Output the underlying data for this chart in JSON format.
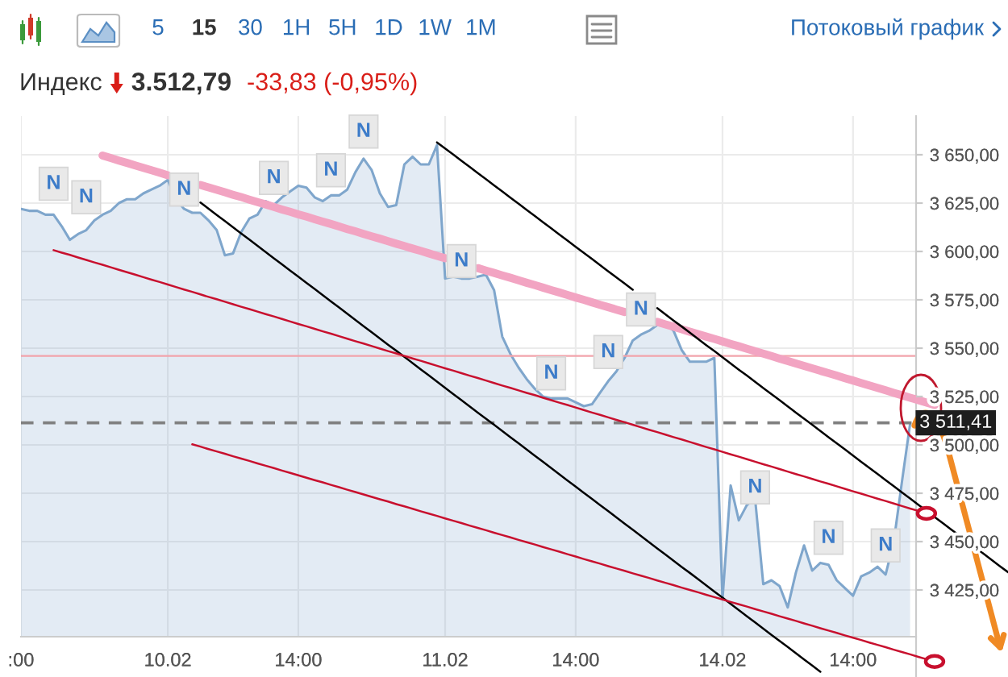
{
  "chart_data": {
    "type": "area",
    "title": "Индекс",
    "subtitle": "3.512,79",
    "annotations": [
      "-33,83 (-0,95%)",
      "5",
      "15",
      "30",
      "1H",
      "5H",
      "1D",
      "1W",
      "1M",
      "Потоковый график"
    ],
    "categories": [
      ":00",
      null,
      null,
      null,
      null,
      null,
      null,
      null,
      null,
      null,
      null,
      null,
      null,
      null,
      null,
      null,
      null,
      null,
      "10.02",
      null,
      null,
      null,
      null,
      null,
      null,
      null,
      null,
      null,
      null,
      null,
      null,
      null,
      null,
      null,
      "14:00",
      null,
      null,
      null,
      null,
      null,
      null,
      null,
      null,
      null,
      null,
      null,
      null,
      null,
      null,
      null,
      null,
      null,
      "11.02",
      null,
      null,
      null,
      null,
      null,
      null,
      null,
      null,
      null,
      null,
      null,
      null,
      null,
      null,
      null,
      "14:00",
      null,
      null,
      null,
      null,
      null,
      null,
      null,
      null,
      null,
      null,
      null,
      null,
      null,
      null,
      null,
      null,
      null,
      "14.02",
      null,
      null,
      null,
      null,
      null,
      null,
      null,
      null,
      null,
      null,
      null,
      null,
      null,
      null,
      null,
      "14:00",
      null,
      null,
      null,
      null,
      null,
      null,
      null,
      null,
      null,
      null,
      null,
      null,
      null,
      null,
      null,
      null,
      null,
      null,
      null
    ],
    "ylim": [
      3380,
      3670
    ],
    "yticks": [
      {
        "value": 3425,
        "label": "3 425,00"
      },
      {
        "value": 3450,
        "label": "3 450,00"
      },
      {
        "value": 3475,
        "label": "3 475,00"
      },
      {
        "value": 3500,
        "label": "3 500,00"
      },
      {
        "value": 3525,
        "label": "3 525,00"
      },
      {
        "value": 3550,
        "label": "3 550,00"
      },
      {
        "value": 3575,
        "label": "3 575,00"
      },
      {
        "value": 3600,
        "label": "3 600,00"
      },
      {
        "value": 3625,
        "label": "3 625,00"
      },
      {
        "value": 3650,
        "label": "3 650,00"
      }
    ],
    "grid": true,
    "series": [
      {
        "color": "#7fa6cc",
        "values": [
          3622,
          3621,
          3621,
          3619,
          3619,
          3613,
          3606,
          3609,
          3611,
          3616,
          3619,
          3621,
          3625,
          3627,
          3627,
          3630,
          3632,
          3634,
          3637,
          3627,
          3622,
          3620,
          3620,
          3616,
          3611,
          3598,
          3599,
          3610,
          3617,
          3619,
          3626,
          3624,
          3628,
          3631,
          3634,
          3633,
          3628,
          3626,
          3629,
          3629,
          3632,
          3641,
          3648,
          3642,
          3630,
          3623,
          3624,
          3645,
          3649,
          3645,
          3645,
          3655,
          3586,
          3587,
          3586,
          3586,
          3587,
          3588,
          3580,
          3556,
          3547,
          3540,
          3534,
          3529,
          3525,
          3524,
          3524,
          3524,
          3522,
          3520,
          3521,
          3527,
          3533,
          3538,
          3545,
          3554,
          3557,
          3559,
          3562,
          3563,
          3559,
          3549,
          3543,
          3543,
          3543,
          3545,
          3420,
          3479,
          3461,
          3469,
          3472,
          3428,
          3430,
          3427,
          3416,
          3434,
          3448,
          3435,
          3439,
          3438,
          3430,
          3426,
          3422,
          3432,
          3434,
          3437,
          3433,
          3450,
          3481,
          3511,
          null,
          null,
          null,
          null,
          null,
          null,
          null,
          null,
          null,
          null,
          null,
          null
        ]
      },
      {
        "type": "line",
        "color": "#f2a4c2",
        "values": [
          null,
          null,
          null,
          null,
          null,
          null,
          null,
          null,
          null,
          null,
          3649.6,
          3648.3,
          3647.0,
          3645.8,
          3644.5,
          3643.2,
          3642.0,
          3640.7,
          3639.4,
          null,
          null,
          null,
          3634.4,
          3633.1,
          3631.9,
          3630.6,
          3629.3,
          3628.1,
          3626.8,
          3625.5,
          3624.3,
          3623.0,
          3621.7,
          3620.5,
          3619.2,
          3618.0,
          3616.7,
          3615.4,
          3614.2,
          3612.9,
          3611.6,
          3610.4,
          3609.1,
          3607.8,
          3606.6,
          3605.3,
          3604.0,
          3602.8,
          3601.5,
          3600.3,
          3599.0,
          3597.7,
          3596.5,
          null,
          null,
          null,
          3591.4,
          3590.1,
          3588.9,
          3587.6,
          3586.4,
          3585.1,
          3583.8,
          3582.6,
          3581.3,
          3580.0,
          3578.8,
          3577.5,
          3576.2,
          3575.0,
          3573.7,
          3572.4,
          3571.2,
          3569.9,
          3568.7,
          null,
          null,
          null,
          3563.6,
          3562.3,
          3561.1,
          3559.8,
          3558.5,
          3557.3,
          3556.0,
          3554.8,
          3553.5,
          3552.2,
          3551.0,
          3549.7,
          3548.4,
          3547.2,
          3545.9,
          3544.6,
          3543.4,
          3542.1,
          3540.8,
          3539.6,
          3538.3,
          3537.1,
          3535.8,
          3534.5,
          3533.3,
          3532.0,
          3530.7,
          3529.5,
          3528.2,
          3526.9,
          3525.7,
          3524.4,
          3523.2,
          3521.9,
          3520.6,
          null,
          null,
          null,
          null,
          null,
          null,
          null,
          null,
          null
        ]
      },
      {
        "type": "line",
        "color": "#000000",
        "values": [
          null,
          null,
          null,
          null,
          null,
          null,
          null,
          null,
          null,
          null,
          null,
          null,
          null,
          null,
          null,
          null,
          null,
          null,
          null,
          null,
          null,
          null,
          3625.3,
          3622.1,
          3618.9,
          3615.7,
          3612.5,
          3609.3,
          3606.1,
          3602.9,
          3599.7,
          3596.5,
          3593.3,
          3590.1,
          3587.0,
          3583.8,
          3580.6,
          3577.4,
          3574.2,
          3571.0,
          3567.8,
          3564.6,
          3561.4,
          3558.2,
          3555.0,
          3551.8,
          3548.7,
          3545.5,
          3542.3,
          3539.1,
          3535.9,
          3532.7,
          3529.5,
          3526.3,
          3523.1,
          3519.9,
          3516.7,
          3513.5,
          3510.4,
          3507.2,
          3504.0,
          3500.8,
          3497.6,
          3494.4,
          3491.2,
          3488.0,
          3484.8,
          3481.6,
          3478.4,
          3475.2,
          3472.1,
          3468.9,
          3465.7,
          3462.5,
          3459.3,
          3456.1,
          3452.9,
          3449.7,
          3446.5,
          3443.3,
          3440.1,
          3436.9,
          3433.8,
          3430.6,
          3427.4,
          3424.2,
          3421.0,
          3417.8,
          3414.6,
          3411.4,
          3408.2,
          3405.0,
          3401.8,
          3398.6,
          3395.5,
          3392.3,
          3389.1,
          3385.9,
          3382.7,
          null,
          null,
          null,
          null,
          null,
          null,
          null,
          null,
          null,
          null,
          null,
          null,
          null,
          null,
          null,
          null,
          null,
          null,
          null,
          null,
          null,
          null,
          null
        ]
      },
      {
        "type": "line",
        "color": "#000000",
        "values": [
          null,
          null,
          null,
          null,
          null,
          null,
          null,
          null,
          null,
          null,
          null,
          null,
          null,
          null,
          null,
          null,
          null,
          null,
          null,
          null,
          null,
          null,
          null,
          null,
          null,
          null,
          null,
          null,
          null,
          null,
          null,
          null,
          null,
          null,
          null,
          null,
          null,
          null,
          null,
          null,
          null,
          null,
          null,
          null,
          null,
          null,
          null,
          null,
          null,
          null,
          null,
          3656.4,
          3653.2,
          3650.1,
          3646.9,
          3643.7,
          3640.5,
          3637.4,
          3634.2,
          3631.0,
          3627.8,
          3624.7,
          3621.5,
          3618.3,
          3615.1,
          3612.0,
          3608.8,
          3605.6,
          3602.4,
          3599.3,
          3596.1,
          3592.9,
          3589.7,
          3586.6,
          3583.4,
          3580.2,
          null,
          null,
          3570.7,
          3567.5,
          3564.3,
          3561.2,
          3558.0,
          3554.8,
          3551.6,
          3548.5,
          3545.3,
          3542.1,
          3538.9,
          3535.8,
          3532.6,
          3529.4,
          3526.2,
          3523.1,
          3519.9,
          3516.7,
          3513.5,
          3510.4,
          3507.2,
          3504.0,
          3500.8,
          3497.7,
          3494.5,
          3491.3,
          3488.1,
          3485.0,
          3481.8,
          3478.6,
          3475.4,
          3472.3,
          3469.1,
          3465.9,
          3462.7,
          3459.6,
          3456.4,
          3453.2,
          3450.0,
          3446.9,
          3443.7,
          3440.5,
          3437.3,
          3434.2
        ]
      },
      {
        "type": "line",
        "color": "#c8102e",
        "values": [
          null,
          null,
          null,
          null,
          3600.7,
          3599.4,
          3598.2,
          3596.9,
          3595.6,
          3594.3,
          3593.1,
          3591.8,
          3590.5,
          3589.3,
          3588.0,
          3586.7,
          3585.4,
          3584.2,
          3582.9,
          3581.6,
          3580.3,
          3579.1,
          3577.8,
          3576.5,
          3575.3,
          3574.0,
          3572.7,
          3571.4,
          3570.2,
          3568.9,
          3567.6,
          3566.4,
          3565.1,
          3563.8,
          3562.5,
          3561.3,
          3560.0,
          3558.7,
          3557.5,
          3556.2,
          3554.9,
          3553.6,
          3552.4,
          3551.1,
          3549.8,
          3548.5,
          3547.3,
          3546.0,
          3544.7,
          3543.5,
          3542.2,
          3540.9,
          3539.6,
          3538.4,
          3537.1,
          3535.8,
          3534.6,
          3533.3,
          3532.0,
          3530.7,
          3529.5,
          3528.2,
          3526.9,
          3525.7,
          3524.4,
          3523.1,
          3521.8,
          3520.6,
          3519.3,
          3518.0,
          3516.7,
          3515.5,
          3514.2,
          3512.9,
          3511.7,
          3510.4,
          3509.1,
          3507.8,
          3506.6,
          3505.3,
          3504.0,
          3502.8,
          3501.5,
          3500.2,
          3498.9,
          3497.7,
          3496.4,
          3495.1,
          3493.9,
          3492.6,
          3491.3,
          3490.0,
          3488.8,
          3487.5,
          3486.2,
          3484.9,
          3483.7,
          3482.4,
          3481.1,
          3479.9,
          3478.6,
          3477.3,
          3476.0,
          3474.8,
          3473.5,
          3472.2,
          3471.0,
          3469.7,
          3468.4,
          3467.1,
          3465.9,
          3464.6,
          null,
          null,
          null,
          null,
          null,
          null,
          null,
          null,
          null,
          null
        ]
      },
      {
        "type": "line",
        "color": "#c8102e",
        "values": [
          null,
          null,
          null,
          null,
          null,
          null,
          null,
          null,
          null,
          null,
          null,
          null,
          null,
          null,
          null,
          null,
          null,
          null,
          null,
          null,
          null,
          3500.3,
          3499.1,
          3497.8,
          3496.6,
          3495.4,
          3494.1,
          3492.9,
          3491.7,
          3490.4,
          3489.2,
          3488.0,
          3486.7,
          3485.5,
          3484.3,
          3483.0,
          3481.8,
          3480.6,
          3479.3,
          3478.1,
          3476.8,
          3475.6,
          3474.4,
          3473.1,
          3471.9,
          3470.7,
          3469.4,
          3468.2,
          3467.0,
          3465.7,
          3464.5,
          3463.3,
          3462.0,
          3460.8,
          3459.6,
          3458.3,
          3457.1,
          3455.9,
          3454.6,
          3453.4,
          3452.2,
          3450.9,
          3449.7,
          3448.5,
          3447.2,
          3446.0,
          3444.8,
          3443.5,
          3442.3,
          3441.0,
          3439.8,
          3438.6,
          3437.3,
          3436.1,
          3434.9,
          3433.6,
          3432.4,
          3431.2,
          3429.9,
          3428.7,
          3427.5,
          3426.2,
          3425.0,
          3423.8,
          3422.5,
          3421.3,
          3420.1,
          3418.8,
          3417.6,
          3416.4,
          3415.1,
          3413.9,
          3412.7,
          3411.4,
          3410.2,
          3409.0,
          3407.7,
          3406.5,
          3405.2,
          3404.0,
          3402.8,
          3401.5,
          3400.3,
          3399.1,
          3397.8,
          3396.6,
          3395.4,
          3394.1,
          3392.9,
          3391.7,
          3390.4,
          3389.2,
          3388.0,
          null,
          null,
          null,
          null,
          null,
          null,
          null,
          null,
          null
        ]
      },
      {
        "type": "scatter",
        "name": "N",
        "color": "#e9e9e9",
        "values": [
          null,
          null,
          null,
          null,
          3635,
          null,
          null,
          null,
          3628,
          null,
          null,
          null,
          null,
          null,
          null,
          null,
          null,
          null,
          null,
          null,
          3632,
          null,
          null,
          null,
          null,
          null,
          null,
          null,
          null,
          null,
          null,
          3638,
          null,
          null,
          null,
          null,
          null,
          null,
          3642,
          null,
          null,
          null,
          3662,
          null,
          null,
          null,
          null,
          null,
          null,
          null,
          null,
          null,
          null,
          null,
          3595,
          null,
          null,
          null,
          null,
          null,
          null,
          null,
          null,
          null,
          null,
          3537,
          null,
          null,
          null,
          null,
          null,
          null,
          3548,
          null,
          null,
          null,
          3570,
          null,
          null,
          null,
          null,
          null,
          null,
          null,
          null,
          null,
          null,
          null,
          null,
          null,
          3478,
          null,
          null,
          null,
          null,
          null,
          null,
          null,
          null,
          3452,
          null,
          null,
          null,
          null,
          null,
          null,
          3448,
          null,
          null,
          null,
          null,
          null,
          null,
          null,
          null,
          null,
          null,
          null,
          null,
          null,
          null,
          null
        ]
      }
    ],
    "ref_lines": [
      {
        "axis": "y",
        "value": 3546,
        "color": "#f2a3ab"
      },
      {
        "axis": "y",
        "value": 3511.41,
        "label": "3 511,41",
        "color": "#808080",
        "line_style": "dashed"
      }
    ]
  }
}
